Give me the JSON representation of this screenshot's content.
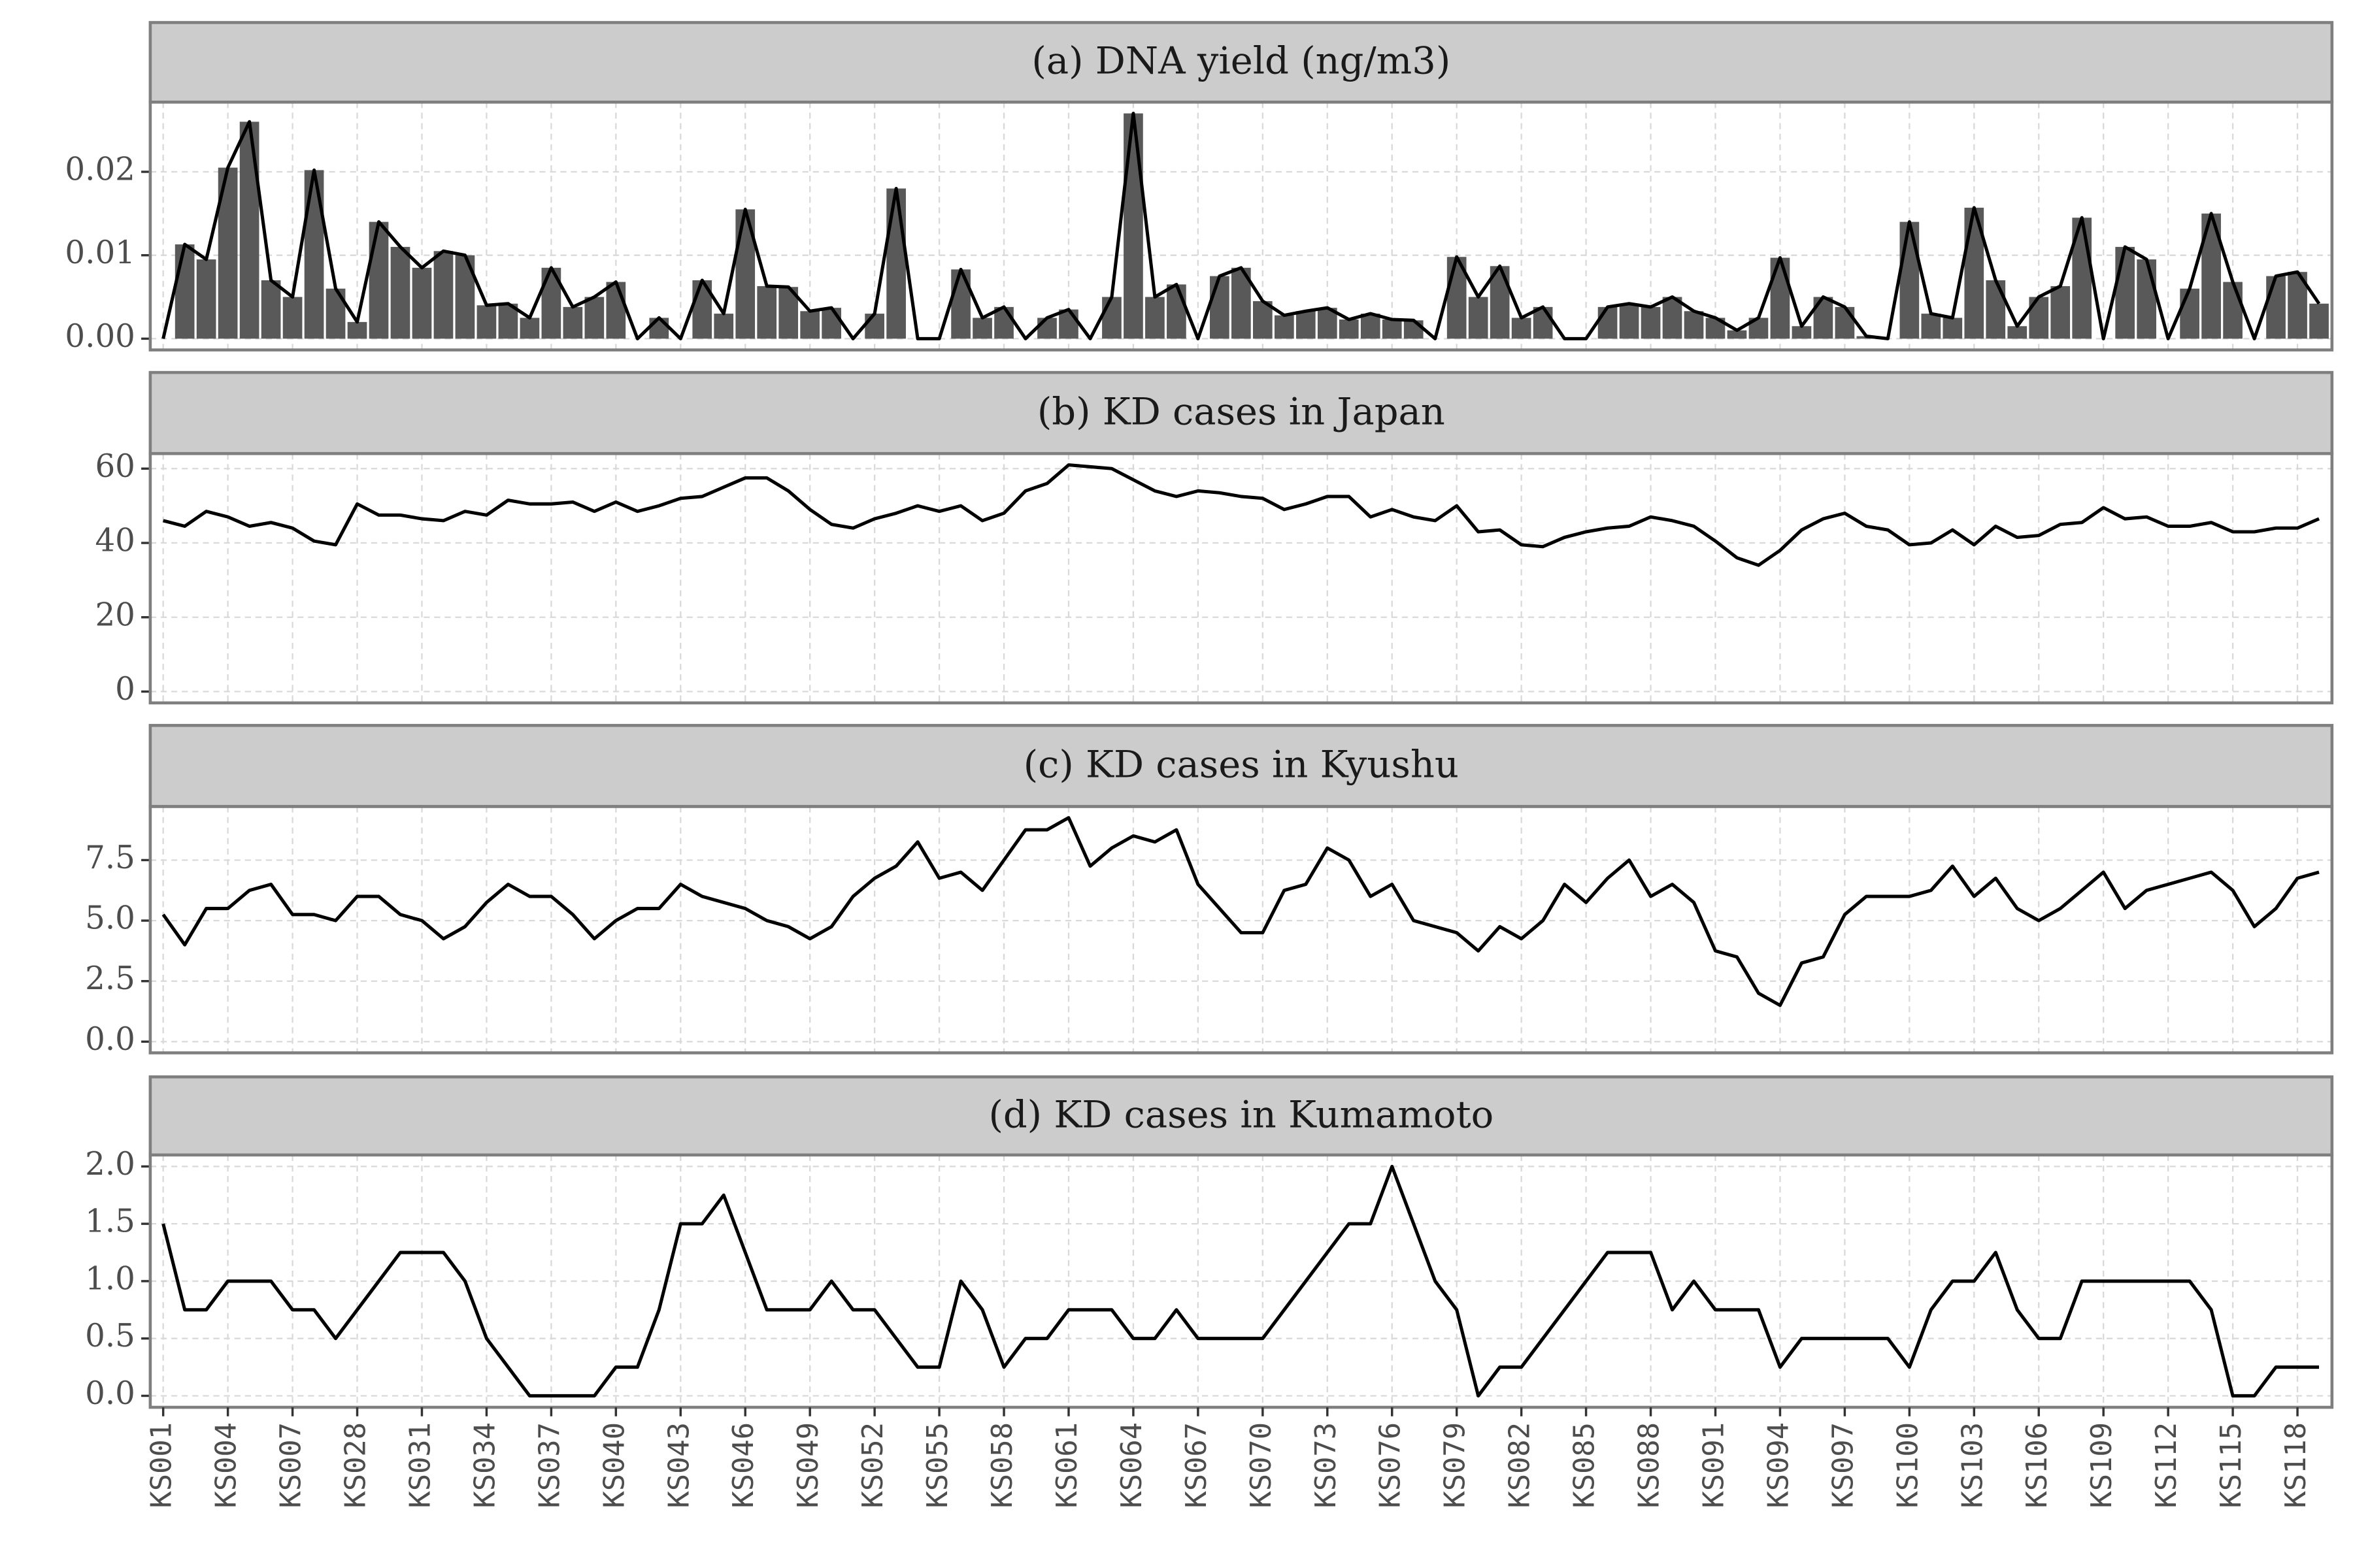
{
  "chart_data": [
    {
      "type": "bar",
      "line": true,
      "title": "(a) DNA yield (ng/m3)",
      "color": "#595959",
      "line_color": "#000000",
      "values": [
        0.0,
        0.0113,
        0.0095,
        0.0205,
        0.026,
        0.007,
        0.005,
        0.0202,
        0.006,
        0.002,
        0.014,
        0.011,
        0.0085,
        0.0105,
        0.01,
        0.004,
        0.0042,
        0.0025,
        0.0085,
        0.0038,
        0.005,
        0.0068,
        0.0,
        0.0025,
        0.0,
        0.007,
        0.003,
        0.0155,
        0.0063,
        0.0062,
        0.0033,
        0.0037,
        0.0,
        0.003,
        0.018,
        0.0,
        0.0,
        0.0083,
        0.0025,
        0.0038,
        0.0,
        0.0025,
        0.0035,
        0.0,
        0.005,
        0.027,
        0.005,
        0.0065,
        0.0,
        0.0075,
        0.0085,
        0.0045,
        0.0028,
        0.0033,
        0.0037,
        0.0023,
        0.003,
        0.0023,
        0.0022,
        0.0,
        0.0098,
        0.005,
        0.0087,
        0.0025,
        0.0038,
        0.0,
        0.0,
        0.0038,
        0.0042,
        0.0038,
        0.005,
        0.0033,
        0.0025,
        0.001,
        0.0025,
        0.0097,
        0.0015,
        0.005,
        0.0038,
        0.0003,
        0.0,
        0.014,
        0.003,
        0.0025,
        0.0157,
        0.007,
        0.0015,
        0.005,
        0.0063,
        0.0145,
        0.0,
        0.011,
        0.0095,
        0.0,
        0.006,
        0.015,
        0.0068,
        0.0,
        0.0075,
        0.008,
        0.0042
      ],
      "ylim": [
        -0.00135,
        0.02835
      ],
      "yticks": [
        {
          "value": 0,
          "label": "0.00"
        },
        {
          "value": 0.01,
          "label": "0.01"
        },
        {
          "value": 0.02,
          "label": "0.02"
        }
      ],
      "grid": true
    },
    {
      "type": "line",
      "title": "(b) KD cases in Japan",
      "color": "#000000",
      "values": [
        46,
        44.5,
        48.5,
        47,
        44.5,
        45.5,
        44,
        40.5,
        39.5,
        50.5,
        47.5,
        47.5,
        46.5,
        46,
        48.5,
        47.5,
        51.5,
        50.5,
        50.5,
        51,
        48.5,
        51,
        48.5,
        50,
        52,
        52.5,
        55,
        57.5,
        57.5,
        54,
        49,
        45,
        44,
        46.5,
        48,
        50,
        48.5,
        50,
        46,
        48,
        54,
        56,
        61,
        60.5,
        60,
        57,
        54,
        52.5,
        54,
        53.5,
        52.5,
        52,
        49,
        50.5,
        52.5,
        52.5,
        47,
        49,
        47,
        46,
        50,
        43,
        43.5,
        39.5,
        39,
        41.5,
        43,
        44,
        44.5,
        47,
        46,
        44.5,
        40.5,
        36,
        34,
        38,
        43.5,
        46.5,
        48,
        44.5,
        43.5,
        39.5,
        40,
        43.5,
        39.5,
        44.5,
        41.5,
        42,
        45,
        45.5,
        49.5,
        46.5,
        47,
        44.5,
        44.5,
        45.5,
        43,
        43,
        44,
        44,
        46.5
      ],
      "ylim": [
        -3.05,
        64.05
      ],
      "yticks": [
        0,
        20,
        40,
        60
      ],
      "grid": true
    },
    {
      "type": "line",
      "title": "(c) KD cases in Kyushu",
      "color": "#000000",
      "values": [
        5.25,
        4,
        5.5,
        5.5,
        6.25,
        6.5,
        5.25,
        5.25,
        5,
        6,
        6,
        5.25,
        5,
        4.25,
        4.75,
        5.75,
        6.5,
        6,
        6,
        5.25,
        4.25,
        5,
        5.5,
        5.5,
        6.5,
        6,
        5.75,
        5.5,
        5,
        4.75,
        4.25,
        4.75,
        6,
        6.75,
        7.25,
        8.25,
        6.75,
        7,
        6.25,
        7.5,
        8.75,
        8.75,
        9.25,
        7.25,
        8,
        8.5,
        8.25,
        8.75,
        6.5,
        5.5,
        4.5,
        4.5,
        6.25,
        6.5,
        8,
        7.5,
        6,
        6.5,
        5,
        4.75,
        4.5,
        3.75,
        4.75,
        4.25,
        5,
        6.5,
        5.75,
        6.75,
        7.5,
        6,
        6.5,
        5.75,
        3.75,
        3.5,
        2,
        1.5,
        3.25,
        3.5,
        5.25,
        6,
        6,
        6,
        6.25,
        7.25,
        6,
        6.75,
        5.5,
        5,
        5.5,
        6.25,
        7,
        5.5,
        6.25,
        6.5,
        6.75,
        7,
        6.25,
        4.75,
        5.5,
        6.75,
        7
      ],
      "ylim": [
        -0.4625,
        9.7125
      ],
      "yticks": [
        {
          "value": 0,
          "label": "0.0"
        },
        2.5,
        {
          "value": 5,
          "label": "5.0"
        },
        7.5
      ],
      "grid": true
    },
    {
      "type": "line",
      "title": "(d) KD cases in Kumamoto",
      "color": "#000000",
      "categories": [
        "KS001",
        null,
        null,
        "KS004",
        null,
        null,
        "KS007",
        null,
        null,
        "KS028",
        null,
        null,
        "KS031",
        null,
        null,
        "KS034",
        null,
        null,
        "KS037",
        null,
        null,
        "KS040",
        null,
        null,
        "KS043",
        null,
        null,
        "KS046",
        null,
        null,
        "KS049",
        null,
        null,
        "KS052",
        null,
        null,
        "KS055",
        null,
        null,
        "KS058",
        null,
        null,
        "KS061",
        null,
        null,
        "KS064",
        null,
        null,
        "KS067",
        null,
        null,
        "KS070",
        null,
        null,
        "KS073",
        null,
        null,
        "KS076",
        null,
        null,
        "KS079",
        null,
        null,
        "KS082",
        null,
        null,
        "KS085",
        null,
        null,
        "KS088",
        null,
        null,
        "KS091",
        null,
        null,
        "KS094",
        null,
        null,
        "KS097",
        null,
        null,
        "KS100",
        null,
        null,
        "KS103",
        null,
        null,
        "KS106",
        null,
        null,
        "KS109",
        null,
        null,
        "KS112",
        null,
        null,
        "KS115",
        null,
        null,
        "KS118",
        null
      ],
      "values": [
        1.5,
        0.75,
        0.75,
        1,
        1,
        1,
        0.75,
        0.75,
        0.5,
        0.75,
        1,
        1.25,
        1.25,
        1.25,
        1,
        0.5,
        0.25,
        0,
        0,
        0,
        0,
        0.25,
        0.25,
        0.75,
        1.5,
        1.5,
        1.75,
        1.25,
        0.75,
        0.75,
        0.75,
        1,
        0.75,
        0.75,
        0.5,
        0.25,
        0.25,
        1,
        0.75,
        0.25,
        0.5,
        0.5,
        0.75,
        0.75,
        0.75,
        0.5,
        0.5,
        0.75,
        0.5,
        0.5,
        0.5,
        0.5,
        0.75,
        1,
        1.25,
        1.5,
        1.5,
        2,
        1.5,
        1,
        0.75,
        0,
        0.25,
        0.25,
        0.5,
        0.75,
        1,
        1.25,
        1.25,
        1.25,
        0.75,
        1,
        0.75,
        0.75,
        0.75,
        0.25,
        0.5,
        0.5,
        0.5,
        0.5,
        0.5,
        0.25,
        0.75,
        1,
        1,
        1.25,
        0.75,
        0.5,
        0.5,
        1,
        1,
        1,
        1,
        1,
        1,
        0.75,
        0,
        0,
        0.25,
        0.25,
        0.25
      ],
      "ylim": [
        -0.1,
        2.1
      ],
      "yticks": [
        {
          "value": 0,
          "label": "0.0"
        },
        0.5,
        {
          "value": 1,
          "label": "1.0"
        },
        1.5,
        {
          "value": 2,
          "label": "2.0"
        }
      ],
      "grid": true
    }
  ]
}
